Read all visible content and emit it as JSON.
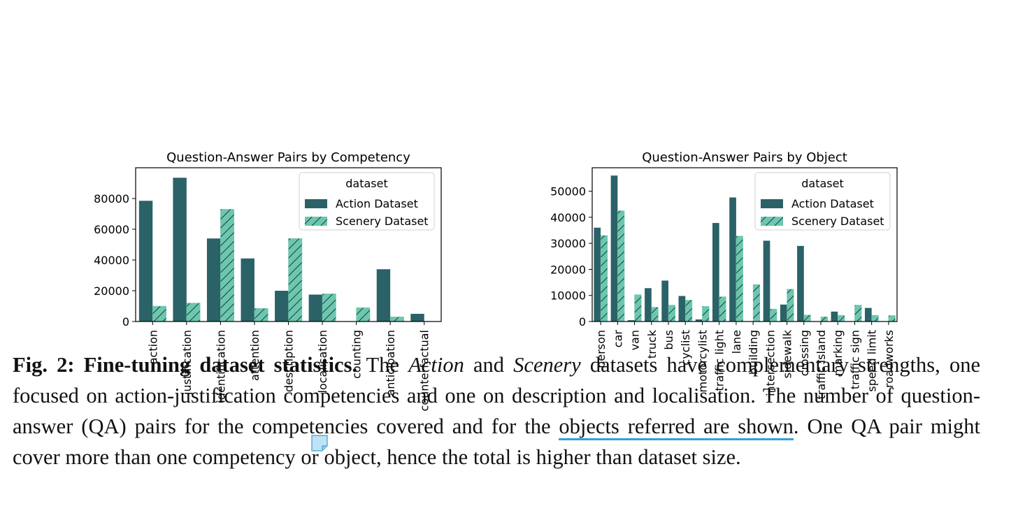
{
  "colors": {
    "action": "#2a6268",
    "scenery": "#6cc7ae",
    "hatch": "#1a3a3c",
    "annotation": "#2fa3d8"
  },
  "chart_data": [
    {
      "type": "bar",
      "title": "Question-Answer Pairs by Competency",
      "xlabel": "",
      "ylabel": "",
      "ylim": [
        0,
        100000
      ],
      "yticks": [
        0,
        20000,
        40000,
        60000,
        80000
      ],
      "ytick_labels": [
        "0",
        "20000",
        "40000",
        "60000",
        "80000"
      ],
      "categories": [
        "action",
        "justification",
        "identification",
        "attention",
        "description",
        "localisation",
        "counting",
        "anticipation",
        "counterfactual"
      ],
      "series": [
        {
          "name": "Action Dataset",
          "values": [
            78500,
            93500,
            54000,
            41000,
            20000,
            17500,
            0,
            34000,
            5000
          ]
        },
        {
          "name": "Scenery Dataset",
          "values": [
            10000,
            12000,
            73000,
            8500,
            54000,
            18000,
            9000,
            3000,
            0
          ]
        }
      ],
      "legend": {
        "title": "dataset",
        "position": "top-right"
      },
      "grid": false
    },
    {
      "type": "bar",
      "title": "Question-Answer Pairs by Object",
      "xlabel": "",
      "ylabel": "",
      "ylim": [
        0,
        59000
      ],
      "yticks": [
        0,
        10000,
        20000,
        30000,
        40000,
        50000
      ],
      "ytick_labels": [
        "0",
        "10000",
        "20000",
        "30000",
        "40000",
        "50000"
      ],
      "categories": [
        "person",
        "car",
        "van",
        "truck",
        "bus",
        "cyclist",
        "motorcylist",
        "traffic light",
        "lane",
        "building",
        "intersection",
        "sidewalk",
        "crossing",
        "traffic island",
        "marking",
        "traffic sign",
        "speed limit",
        "roadworks"
      ],
      "series": [
        {
          "name": "Action Dataset",
          "values": [
            36000,
            56000,
            500,
            12800,
            15700,
            9800,
            800,
            37800,
            47600,
            0,
            31000,
            6500,
            29000,
            0,
            3800,
            0,
            5200,
            0
          ]
        },
        {
          "name": "Scenery Dataset",
          "values": [
            33000,
            42500,
            10300,
            5500,
            6300,
            8200,
            5800,
            9500,
            32800,
            14200,
            4800,
            12400,
            2500,
            1800,
            2400,
            6300,
            2400,
            2300
          ]
        }
      ],
      "legend": {
        "title": "dataset",
        "position": "top-right"
      },
      "grid": false
    }
  ],
  "caption": {
    "label": "Fig. 2: Fine-tuning dataset statistics.",
    "text_1": " The ",
    "action_word": "Action",
    "text_2": " and ",
    "scenery_word": "Scenery",
    "text_3": " datasets have complementary strengths, one focused on action-justification competencies and one on description and localisation. The number of question-answer (QA) pairs for the competencies covered and for the ",
    "highlighted": "objects referred are shown",
    "text_4": ". One QA pair might cover more than one competency or object, hence the total is higher than dataset size."
  },
  "annotation": {
    "icon": "sticky-note-icon"
  }
}
